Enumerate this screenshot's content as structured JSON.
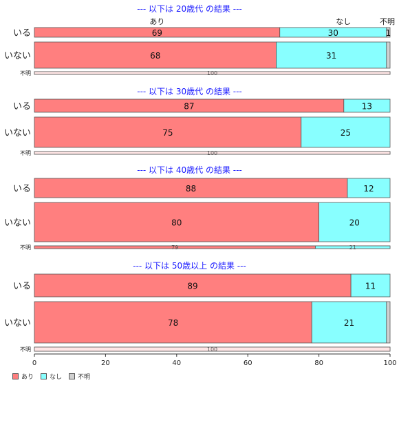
{
  "chart_data": {
    "type": "bar",
    "orientation": "horizontal",
    "stacked": true,
    "xlim": [
      0,
      100
    ],
    "x_ticks": [
      "0",
      "20",
      "40",
      "60",
      "80",
      "100"
    ],
    "series_colors": [
      "#ff7f7f",
      "#88ffff",
      "#d0d0d0"
    ],
    "legend": {
      "position": "bottom-left",
      "labels": [
        "あり",
        "なし",
        "不明"
      ]
    },
    "top_labels": [
      "あり",
      "なし",
      "不明"
    ],
    "panels": [
      {
        "title": "--- 以下は 20歳代 の結果 ---",
        "rows": [
          {
            "label": "いる",
            "values": [
              69,
              30,
              1
            ],
            "value_labels": [
              "69",
              "30",
              "1"
            ]
          },
          {
            "label": "いない",
            "values": [
              68,
              31,
              1
            ],
            "value_labels": [
              "68",
              "31",
              ""
            ]
          },
          {
            "label": "不明",
            "values": [
              0,
              0,
              100
            ],
            "value_labels": [
              "",
              "",
              "100"
            ]
          }
        ]
      },
      {
        "title": "--- 以下は 30歳代 の結果 ---",
        "rows": [
          {
            "label": "いる",
            "values": [
              87,
              13,
              0
            ],
            "value_labels": [
              "87",
              "13",
              ""
            ]
          },
          {
            "label": "いない",
            "values": [
              75,
              25,
              0
            ],
            "value_labels": [
              "75",
              "25",
              ""
            ]
          },
          {
            "label": "不明",
            "values": [
              0,
              0,
              100
            ],
            "value_labels": [
              "",
              "",
              "100"
            ]
          }
        ]
      },
      {
        "title": "--- 以下は 40歳代 の結果 ---",
        "rows": [
          {
            "label": "いる",
            "values": [
              88,
              12,
              0
            ],
            "value_labels": [
              "88",
              "12",
              ""
            ]
          },
          {
            "label": "いない",
            "values": [
              80,
              20,
              0
            ],
            "value_labels": [
              "80",
              "20",
              ""
            ]
          },
          {
            "label": "不明",
            "values": [
              79,
              21,
              0
            ],
            "value_labels": [
              "79",
              "21",
              ""
            ]
          }
        ]
      },
      {
        "title": "--- 以下は 50歳以上 の結果 ---",
        "rows": [
          {
            "label": "いる",
            "values": [
              89,
              11,
              0
            ],
            "value_labels": [
              "89",
              "11",
              ""
            ]
          },
          {
            "label": "いない",
            "values": [
              78,
              21,
              1
            ],
            "value_labels": [
              "78",
              "21",
              ""
            ]
          },
          {
            "label": "不明",
            "values": [
              0,
              0,
              100
            ],
            "value_labels": [
              "",
              "",
              "100"
            ]
          }
        ]
      }
    ]
  }
}
